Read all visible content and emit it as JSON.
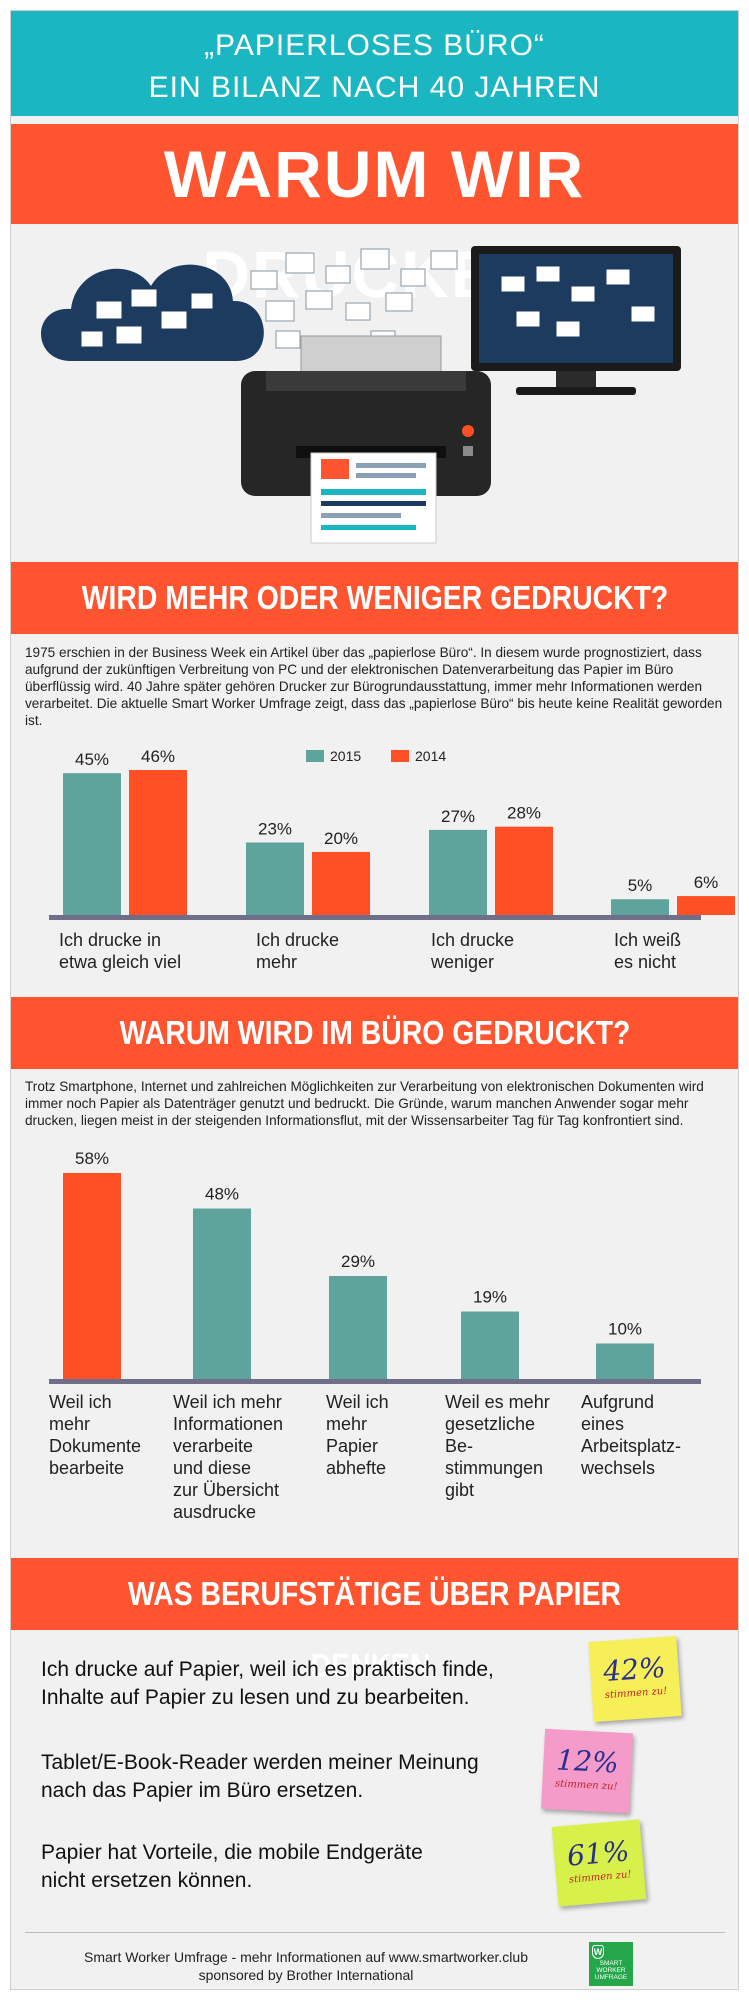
{
  "header": {
    "line1": "„PAPIERLOSES BÜRO“",
    "line2": "EIN BILANZ NACH 40 JAHREN",
    "main_title": "WARUM WIR DRUCKEN"
  },
  "colors": {
    "teal": "#1ab7c2",
    "red": "#ff5430",
    "bar_teal": "#5fa39d",
    "bar_red": "#ff4f24",
    "navy": "#1d3a5f"
  },
  "section1": {
    "title": "WIRD MEHR ODER WENIGER GEDRUCKT?",
    "intro": "1975 erschien in der Business Week ein Artikel über das „papierlose Büro“. In diesem wurde prognostiziert, dass aufgrund der zukünftigen Verbreitung von PC und der elektronischen Datenverarbeitung das Papier im Büro überflüssig wird. 40 Jahre später gehören Drucker zur Bürogrundausstattung, immer mehr Informationen werden verarbeitet. Die aktuelle Smart Worker Umfrage zeigt, dass das „papierlose Büro“ bis heute keine Realität geworden ist."
  },
  "section2": {
    "title": "WARUM WIRD IM BÜRO GEDRUCKT?",
    "intro": "Trotz Smartphone, Internet und zahlreichen Möglichkeiten zur Verarbeitung von elektronischen Dokumenten wird immer noch Papier als Datenträger genutzt und bedruckt. Die Gründe, warum manchen Anwender sogar mehr drucken, liegen meist in der steigenden Informationsflut, mit der Wissensarbeiter Tag für Tag konfrontiert sind."
  },
  "section3": {
    "title": "WAS BERUFSTÄTIGE ÜBER PAPIER DENKEN.",
    "statements": [
      {
        "text_line1": "Ich drucke auf Papier, weil ich es praktisch finde,",
        "text_line2": "Inhalte auf Papier zu lesen und zu bearbeiten.",
        "pct": "42%",
        "agree": "stimmen zu!",
        "note_color": "#f7ef57"
      },
      {
        "text_line1": "Tablet/E-Book-Reader werden meiner Meinung",
        "text_line2": "nach das Papier im Büro ersetzen.",
        "pct": "12%",
        "agree": "stimmen zu!",
        "note_color": "#f59bc9"
      },
      {
        "text_line1": "Papier hat Vorteile, die mobile Endgeräte",
        "text_line2": "nicht ersetzen können.",
        "pct": "61%",
        "agree": "stimmen zu!",
        "note_color": "#d8f04a"
      }
    ]
  },
  "footer": {
    "line1": "Smart Worker Umfrage - mehr Informationen auf www.smartworker.club",
    "line2": "sponsored by Brother International",
    "logo_line1": "SMART",
    "logo_line2": "WORKER",
    "logo_line3": "UMFRAGE"
  },
  "chart_data": [
    {
      "type": "bar",
      "categories": [
        "Ich drucke in etwa gleich viel",
        "Ich drucke mehr",
        "Ich drucke weniger",
        "Ich weiß es nicht"
      ],
      "category_lines": [
        [
          "Ich drucke in",
          "etwa gleich viel"
        ],
        [
          "Ich drucke",
          "mehr"
        ],
        [
          "Ich drucke",
          "weniger"
        ],
        [
          "Ich weiß",
          "es nicht"
        ]
      ],
      "series": [
        {
          "name": "2015",
          "values": [
            45,
            23,
            27,
            5
          ],
          "color": "#5fa39d"
        },
        {
          "name": "2014",
          "values": [
            46,
            20,
            28,
            6
          ],
          "color": "#ff4f24"
        }
      ],
      "ylim": [
        0,
        50
      ],
      "legend": "top-center",
      "data_labels": true
    },
    {
      "type": "bar",
      "categories": [
        "Weil ich mehr Dokumente bearbeite",
        "Weil ich mehr Informationen verarbeite und diese zur Übersicht ausdrucke",
        "Weil ich mehr Papier abhefte",
        "Weil es mehr gesetzliche Be-stimmungen gibt",
        "Aufgrund eines Arbeitsplatz-wechsels"
      ],
      "category_lines": [
        [
          "Weil ich",
          "mehr",
          "Dokumente",
          "bearbeite"
        ],
        [
          "Weil ich mehr",
          "Informationen",
          "verarbeite",
          "und diese",
          "zur Übersicht",
          "ausdrucke"
        ],
        [
          "Weil ich",
          "mehr",
          "Papier",
          "abhefte"
        ],
        [
          "Weil es mehr",
          "gesetzliche",
          "Be-",
          "stimmungen",
          "gibt"
        ],
        [
          "Aufgrund",
          "eines",
          "Arbeitsplatz-",
          "wechsels"
        ]
      ],
      "values": [
        58,
        48,
        29,
        19,
        10
      ],
      "colors": [
        "#ff4f24",
        "#5fa39d",
        "#5fa39d",
        "#5fa39d",
        "#5fa39d"
      ],
      "ylim": [
        0,
        62
      ],
      "data_labels": true
    }
  ]
}
